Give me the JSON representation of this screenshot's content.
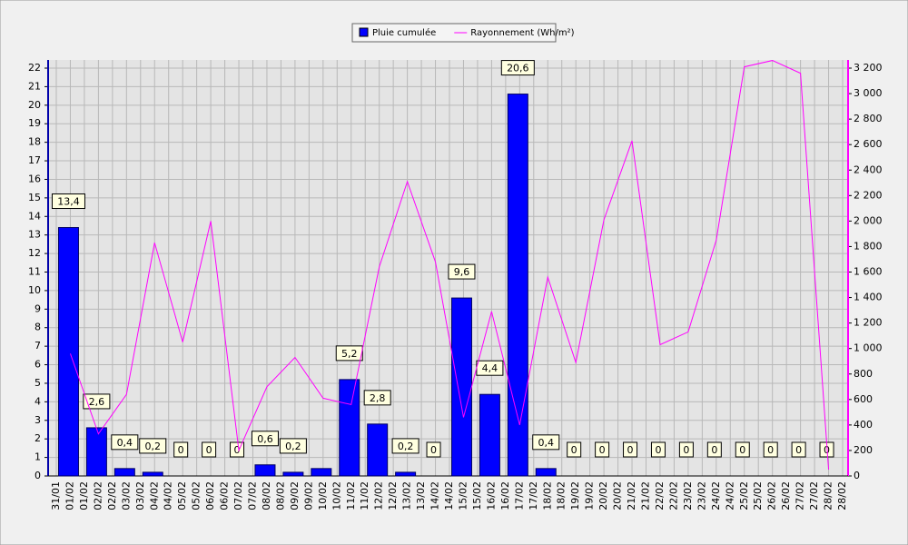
{
  "chart_data": {
    "type": "bar",
    "xtick_labels": [
      "31/01",
      "01/02",
      "01/02",
      "02/02",
      "02/02",
      "03/02",
      "03/02",
      "04/02",
      "04/02",
      "05/02",
      "05/02",
      "06/02",
      "06/02",
      "07/02",
      "07/02",
      "08/02",
      "08/02",
      "09/02",
      "09/02",
      "10/02",
      "10/02",
      "11/02",
      "11/02",
      "12/02",
      "12/02",
      "13/02",
      "13/02",
      "14/02",
      "14/02",
      "15/02",
      "15/02",
      "16/02",
      "16/02",
      "17/02",
      "17/02",
      "18/02",
      "18/02",
      "19/02",
      "19/02",
      "20/02",
      "20/02",
      "21/02",
      "21/02",
      "22/02",
      "22/02",
      "23/02",
      "23/02",
      "24/02",
      "24/02",
      "25/02",
      "25/02",
      "26/02",
      "26/02",
      "27/02",
      "27/02",
      "28/02",
      "28/02"
    ],
    "series": [
      {
        "name": "Pluie cumulée",
        "type": "bar",
        "color": "#0000ff",
        "values": [
          13.4,
          2.6,
          0.4,
          0.2,
          0,
          0,
          0,
          0.6,
          0.2,
          0.4,
          5.2,
          2.8,
          0.2,
          0,
          9.6,
          4.4,
          20.6,
          0.4,
          0,
          0,
          0,
          0,
          0,
          0,
          0,
          0,
          0,
          0
        ],
        "value_labels": [
          "13,4",
          "2,6",
          "0,4",
          "0,2",
          "0",
          "0",
          "0",
          "0,6",
          "0,2",
          null,
          "5,2",
          "2,8",
          "0,2",
          "0",
          "9,6",
          "4,4",
          "20,6",
          "0,4",
          "0",
          "0",
          "0",
          "0",
          "0",
          "0",
          "0",
          "0",
          "0",
          "0"
        ]
      },
      {
        "name": "Rayonnement (Wh/m²)",
        "type": "line",
        "color": "#ff00ff",
        "axis": "y2",
        "values": [
          960,
          330,
          640,
          1830,
          1050,
          2000,
          200,
          700,
          930,
          610,
          560,
          1640,
          2310,
          1680,
          460,
          1290,
          400,
          1560,
          890,
          2010,
          2630,
          1030,
          1130,
          1850,
          3210,
          3260,
          3160,
          50
        ]
      }
    ],
    "ylim": [
      0,
      22
    ],
    "yticks": [
      0,
      1,
      2,
      3,
      4,
      5,
      6,
      7,
      8,
      9,
      10,
      11,
      12,
      13,
      14,
      15,
      16,
      17,
      18,
      19,
      20,
      21,
      22
    ],
    "y2lim": [
      0,
      3200
    ],
    "y2ticks": [
      0,
      200,
      400,
      600,
      800,
      {
        "value": 1000,
        "label": "1 000"
      },
      {
        "value": 1200,
        "label": "1 200"
      },
      {
        "value": 1400,
        "label": "1 400"
      },
      {
        "value": 1600,
        "label": "1 600"
      },
      {
        "value": 1800,
        "label": "1 800"
      },
      {
        "value": 2000,
        "label": "2 000"
      },
      {
        "value": 2200,
        "label": "2 200"
      },
      {
        "value": 2400,
        "label": "2 400"
      },
      {
        "value": 2600,
        "label": "2 600"
      },
      {
        "value": 2800,
        "label": "2 800"
      },
      {
        "value": 3000,
        "label": "3 000"
      },
      {
        "value": 3200,
        "label": "3 200"
      }
    ],
    "grid": true,
    "legend": "top"
  }
}
